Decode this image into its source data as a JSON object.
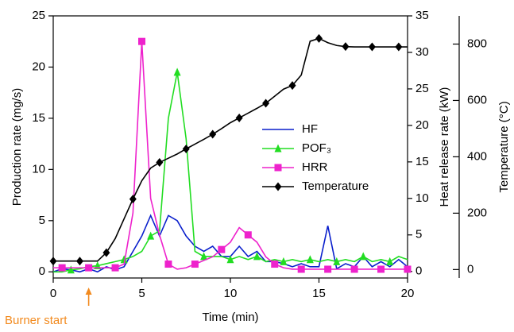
{
  "chart_data": {
    "type": "line",
    "x_label": "Time (min)",
    "y_label": "Production rate (mg/s)",
    "y2_label": "Heat release rate (kW)",
    "y3_label": "Temperature (°C)",
    "x": [
      0,
      0.5,
      1,
      1.5,
      2,
      2.5,
      3,
      3.5,
      4,
      4.5,
      5,
      5.5,
      6,
      6.5,
      7,
      7.5,
      8,
      8.5,
      9,
      9.5,
      10,
      10.5,
      11,
      11.5,
      12,
      12.5,
      13,
      13.5,
      14,
      14.5,
      15,
      15.5,
      16,
      16.5,
      17,
      17.5,
      18,
      18.5,
      19,
      19.5,
      20
    ],
    "xlim": [
      0,
      20
    ],
    "xticks": [
      0,
      5,
      10,
      15,
      20
    ],
    "ylim": [
      -0.6,
      25
    ],
    "yticks": [
      0,
      5,
      10,
      15,
      20,
      25
    ],
    "y2lim": [
      -0.9,
      35
    ],
    "y2ticks": [
      0,
      5,
      10,
      15,
      20,
      25,
      30,
      35
    ],
    "y3lim": [
      -30,
      900
    ],
    "y3ticks": [
      0,
      200,
      400,
      600,
      800
    ],
    "series": [
      {
        "name": "HF",
        "color": "#0a1fcc",
        "marker": "none",
        "axis": "y",
        "values": [
          0,
          0.3,
          0.2,
          0,
          0.3,
          0,
          0.5,
          0.2,
          0.5,
          2,
          3.5,
          5.5,
          3.5,
          5.5,
          5,
          3.5,
          2.5,
          2,
          2.5,
          1.5,
          1.5,
          2.5,
          1.5,
          2,
          1,
          1,
          0.8,
          0.5,
          0.8,
          0.5,
          0.5,
          4.5,
          0.3,
          0.8,
          0.5,
          1.5,
          0.5,
          1,
          0.5,
          1.2,
          0.5
        ]
      },
      {
        "name": "POF₃",
        "color": "#22dd22",
        "marker": "triangle",
        "axis": "y",
        "values": [
          0,
          0,
          0.2,
          0.3,
          0.5,
          0.6,
          0.8,
          1,
          1.2,
          1.5,
          2,
          3.5,
          4,
          15,
          19.5,
          13,
          2,
          1.5,
          1.5,
          1.5,
          1.2,
          1.5,
          1.2,
          1.5,
          1,
          1.2,
          1,
          1.2,
          1,
          1.2,
          1,
          1.2,
          1,
          1.2,
          1,
          1.5,
          1,
          1.2,
          1,
          1.5,
          1.2
        ]
      },
      {
        "name": "HRR",
        "color": "#ee22cc",
        "marker": "square",
        "axis": "y2",
        "values": [
          0.5,
          0.5,
          0.5,
          0.5,
          0.5,
          0.5,
          0.5,
          0.5,
          1,
          8,
          31.5,
          10,
          5,
          1,
          0.3,
          0.5,
          1,
          1.5,
          2,
          3,
          4,
          6,
          5,
          4,
          2,
          1,
          0.5,
          0.3,
          0.3,
          0.3,
          0.3,
          0.3,
          0.3,
          0.3,
          0.3,
          0.3,
          0.3,
          0.3,
          0.3,
          0.3,
          0.3
        ]
      },
      {
        "name": "Temperature",
        "color": "#000000",
        "marker": "diamond",
        "axis": "y3",
        "values": [
          30,
          30,
          30,
          30,
          30,
          30,
          60,
          110,
          180,
          250,
          315,
          360,
          380,
          395,
          410,
          428,
          445,
          462,
          480,
          500,
          521,
          538,
          555,
          572,
          590,
          615,
          640,
          653,
          690,
          810,
          820,
          805,
          795,
          791,
          790,
          790,
          790,
          790,
          790,
          790,
          790
        ]
      }
    ],
    "annotation": {
      "text": "Burner start",
      "x": 2,
      "color": "#f28a1e"
    }
  }
}
